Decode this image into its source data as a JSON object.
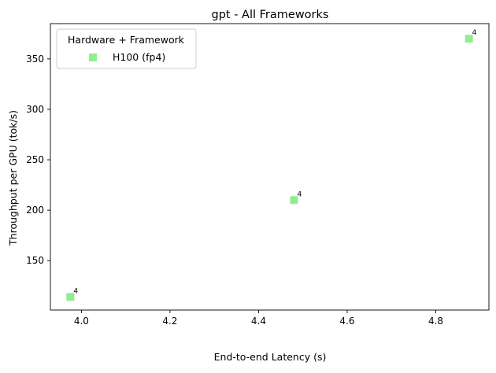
{
  "chart_data": {
    "type": "scatter",
    "title": "gpt - All Frameworks",
    "xlabel": "End-to-end Latency (s)",
    "ylabel": "Throughput per GPU (tok/s)",
    "xlim": [
      3.93,
      4.92
    ],
    "ylim": [
      101,
      385
    ],
    "x_ticks": [
      4.0,
      4.2,
      4.4,
      4.6,
      4.8
    ],
    "x_tick_labels": [
      "4.0",
      "4.2",
      "4.4",
      "4.6",
      "4.8"
    ],
    "y_ticks": [
      150,
      200,
      250,
      300,
      350
    ],
    "y_tick_labels": [
      "150",
      "200",
      "250",
      "300",
      "350"
    ],
    "grid": false,
    "legend": {
      "title": "Hardware + Framework",
      "placement": "top-left"
    },
    "series": [
      {
        "name": "H100 (fp4)",
        "color": "#90ee90",
        "marker": "square",
        "points": [
          {
            "x": 3.975,
            "y": 114,
            "label": "4"
          },
          {
            "x": 4.48,
            "y": 210,
            "label": "4"
          },
          {
            "x": 4.875,
            "y": 370,
            "label": "4"
          }
        ]
      }
    ]
  }
}
